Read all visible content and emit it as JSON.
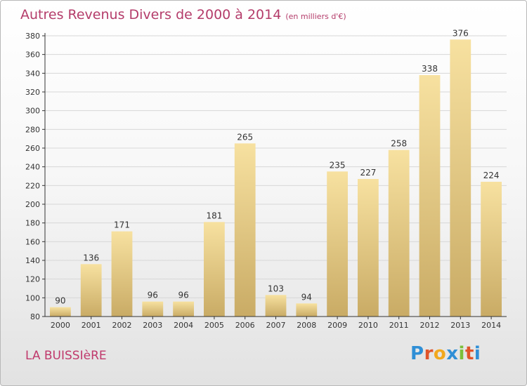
{
  "title": "Autres Revenus Divers de 2000 à 2014",
  "unit_note": "(en milliers d'€)",
  "location": "LA BUISSIèRE",
  "logo": {
    "letters": [
      "P",
      "r",
      "o",
      "x",
      "i",
      "t",
      "i"
    ],
    "colors": [
      "#2f8fd6",
      "#e0542a",
      "#f2a81d",
      "#2f8fd6",
      "#7cbf3a",
      "#e0542a",
      "#2f8fd6"
    ]
  },
  "colors": {
    "title": "#b43c6a",
    "bar_light": "#f7e1a0",
    "bar_dark": "#c9ab65",
    "axis": "#333333",
    "grid": "#d7d7d7"
  },
  "chart_data": {
    "type": "bar",
    "categories": [
      "2000",
      "2001",
      "2002",
      "2003",
      "2004",
      "2005",
      "2006",
      "2007",
      "2008",
      "2009",
      "2010",
      "2011",
      "2012",
      "2013",
      "2014"
    ],
    "values": [
      90,
      136,
      171,
      96,
      96,
      181,
      265,
      103,
      94,
      235,
      227,
      258,
      338,
      376,
      224
    ],
    "ylim": [
      80,
      380
    ],
    "yticks": [
      80,
      100,
      120,
      140,
      160,
      180,
      200,
      220,
      240,
      260,
      280,
      300,
      320,
      340,
      360,
      380
    ],
    "grid": "horizontal",
    "xlabel": "",
    "ylabel": ""
  }
}
